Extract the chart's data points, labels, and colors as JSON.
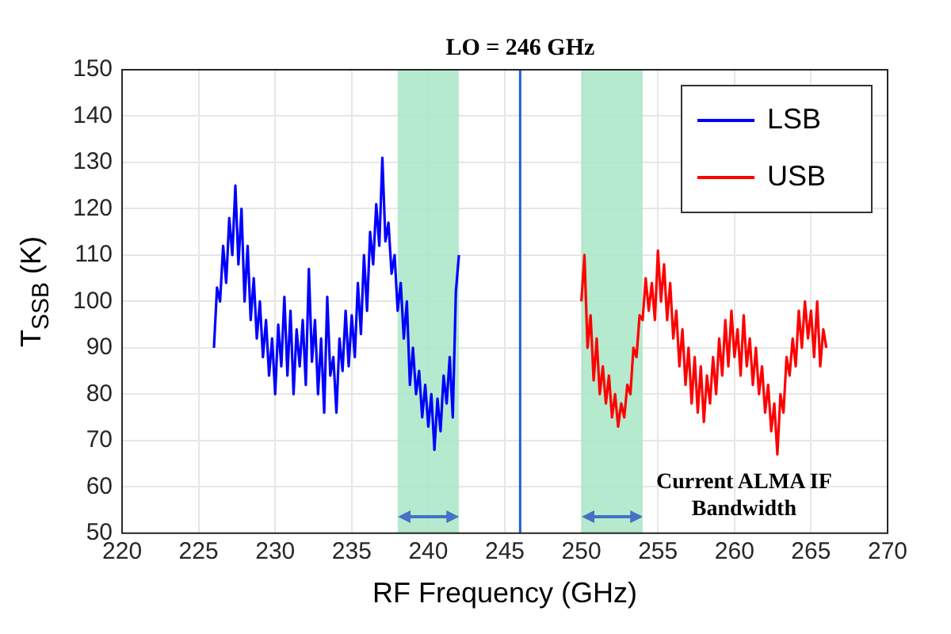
{
  "chart_data": {
    "type": "line",
    "xlabel": "RF Frequency (GHz)",
    "ylabel": "T$_{SSB}$ (K)",
    "xlim": [
      220,
      270
    ],
    "xticks": [
      220,
      225,
      230,
      235,
      240,
      245,
      250,
      255,
      260,
      265,
      270
    ],
    "ylim": [
      50,
      150
    ],
    "yticks": [
      50,
      60,
      70,
      80,
      90,
      100,
      110,
      120,
      130,
      140,
      150
    ],
    "grid": true,
    "legend": "top right",
    "marker": "none",
    "line_style": "solid",
    "series": [
      {
        "name": "LSB",
        "color": "#0000ff",
        "x": [
          226.0,
          226.2,
          226.4,
          226.6,
          226.8,
          227.0,
          227.2,
          227.4,
          227.6,
          227.8,
          228.0,
          228.2,
          228.4,
          228.6,
          228.8,
          229.0,
          229.2,
          229.4,
          229.6,
          229.8,
          230.0,
          230.2,
          230.4,
          230.6,
          230.8,
          231.0,
          231.2,
          231.4,
          231.6,
          231.8,
          232.0,
          232.2,
          232.4,
          232.6,
          232.8,
          233.0,
          233.2,
          233.4,
          233.6,
          233.8,
          234.0,
          234.2,
          234.4,
          234.6,
          234.8,
          235.0,
          235.2,
          235.4,
          235.6,
          235.8,
          236.0,
          236.2,
          236.4,
          236.6,
          236.8,
          237.0,
          237.2,
          237.4,
          237.6,
          237.8,
          238.0,
          238.2,
          238.4,
          238.6,
          238.8,
          239.0,
          239.2,
          239.4,
          239.6,
          239.8,
          240.0,
          240.2,
          240.4,
          240.6,
          240.8,
          241.0,
          241.2,
          241.4,
          241.6,
          241.8,
          242.0
        ],
        "values": [
          90,
          103,
          100,
          112,
          104,
          118,
          110,
          125,
          108,
          120,
          100,
          112,
          96,
          105,
          92,
          100,
          88,
          96,
          84,
          92,
          80,
          95,
          86,
          101,
          84,
          98,
          80,
          94,
          86,
          96,
          82,
          107,
          87,
          96,
          80,
          92,
          76,
          101,
          84,
          88,
          76,
          92,
          85,
          98,
          86,
          97,
          88,
          104,
          93,
          110,
          98,
          115,
          108,
          121,
          112,
          131,
          113,
          117,
          106,
          110,
          98,
          104,
          92,
          100,
          82,
          90,
          80,
          85,
          75,
          82,
          73,
          80,
          68,
          79,
          72,
          84,
          78,
          88,
          75,
          102,
          110
        ]
      },
      {
        "name": "USB",
        "color": "#ff0000",
        "x": [
          250.0,
          250.2,
          250.4,
          250.6,
          250.8,
          251.0,
          251.2,
          251.4,
          251.6,
          251.8,
          252.0,
          252.2,
          252.4,
          252.6,
          252.8,
          253.0,
          253.2,
          253.4,
          253.6,
          253.8,
          254.0,
          254.2,
          254.4,
          254.6,
          254.8,
          255.0,
          255.2,
          255.4,
          255.6,
          255.8,
          256.0,
          256.2,
          256.4,
          256.6,
          256.8,
          257.0,
          257.2,
          257.4,
          257.6,
          257.8,
          258.0,
          258.2,
          258.4,
          258.6,
          258.8,
          259.0,
          259.2,
          259.4,
          259.6,
          259.8,
          260.0,
          260.2,
          260.4,
          260.6,
          260.8,
          261.0,
          261.2,
          261.4,
          261.6,
          261.8,
          262.0,
          262.2,
          262.4,
          262.6,
          262.8,
          263.0,
          263.2,
          263.4,
          263.6,
          263.8,
          264.0,
          264.2,
          264.4,
          264.6,
          264.8,
          265.0,
          265.2,
          265.4,
          265.6,
          265.8,
          266.0
        ],
        "values": [
          100,
          110,
          90,
          97,
          83,
          92,
          80,
          86,
          78,
          84,
          75,
          80,
          73,
          78,
          75,
          82,
          80,
          90,
          88,
          97,
          96,
          105,
          98,
          104,
          96,
          111,
          100,
          108,
          96,
          104,
          92,
          98,
          86,
          94,
          82,
          90,
          78,
          88,
          76,
          86,
          74,
          84,
          78,
          88,
          80,
          92,
          84,
          96,
          86,
          98,
          88,
          94,
          84,
          97,
          86,
          92,
          82,
          90,
          80,
          86,
          76,
          82,
          72,
          78,
          67,
          80,
          76,
          88,
          84,
          92,
          86,
          98,
          90,
          100,
          92,
          98,
          88,
          100,
          86,
          94,
          90
        ]
      }
    ],
    "ref_lines": [
      {
        "axis": "x",
        "value": 246,
        "label": "LO = 246 GHz",
        "color": "#1f5fd6"
      }
    ],
    "bands": [
      {
        "axis": "x",
        "from": 238,
        "to": 242,
        "color": "#a8e6c6"
      },
      {
        "axis": "x",
        "from": 250,
        "to": 254,
        "color": "#a8e6c6"
      }
    ],
    "annotations": [
      "Current ALMA IF Bandwidth"
    ]
  }
}
